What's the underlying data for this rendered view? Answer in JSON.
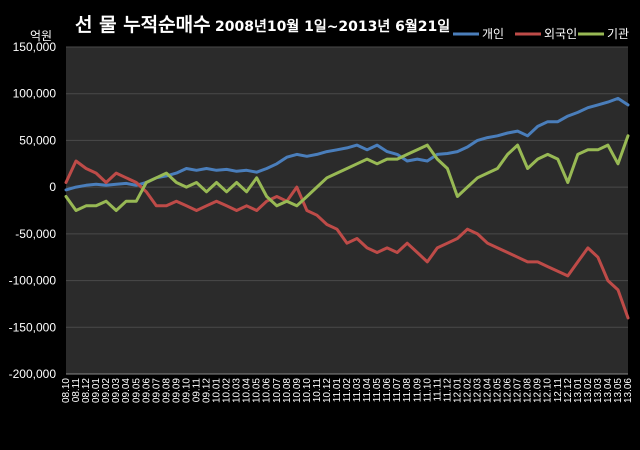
{
  "chart_data": {
    "type": "line",
    "title": "선 물 누적순매수",
    "subtitle": "2008년10월 1일~2013년 6월21일",
    "ylabel": "억원",
    "ylim": [
      -200000,
      150000
    ],
    "yticks": [
      150000,
      100000,
      50000,
      0,
      -50000,
      -100000,
      -150000,
      -200000
    ],
    "ytick_labels": [
      "150,000",
      "100,000",
      "50,000",
      "0",
      "-50,000",
      "-100,000",
      "-150,000",
      "-200,000"
    ],
    "grid": true,
    "legend_position": "top-right",
    "x": [
      "08.10",
      "08.11",
      "08.12",
      "09.01",
      "09.02",
      "09.03",
      "09.04",
      "09.05",
      "09.06",
      "09.07",
      "09.08",
      "09.09",
      "09.10",
      "09.11",
      "09.12",
      "10.01",
      "10.02",
      "10.03",
      "10.04",
      "10.05",
      "10.06",
      "10.07",
      "10.08",
      "10.09",
      "10.10",
      "10.11",
      "10.12",
      "11.01",
      "11.02",
      "11.03",
      "11.04",
      "11.05",
      "11.06",
      "11.07",
      "11.08",
      "11.09",
      "11.10",
      "11.11",
      "11.12",
      "12.01",
      "12.02",
      "12.03",
      "12.04",
      "12.05",
      "12.06",
      "12.07",
      "12.08",
      "12.09",
      "12.10",
      "12.11",
      "12.12",
      "13.01",
      "13.02",
      "13.03",
      "13.04",
      "13.05",
      "13.06"
    ],
    "series": [
      {
        "name": "개인",
        "color": "#4a7ebb",
        "values": [
          -3000,
          0,
          2000,
          3000,
          2000,
          3000,
          4000,
          2000,
          5000,
          10000,
          12000,
          15000,
          20000,
          18000,
          20000,
          18000,
          19000,
          17000,
          18000,
          16000,
          20000,
          25000,
          32000,
          35000,
          33000,
          35000,
          38000,
          40000,
          42000,
          45000,
          40000,
          45000,
          38000,
          35000,
          28000,
          30000,
          28000,
          35000,
          36000,
          38000,
          43000,
          50000,
          53000,
          55000,
          58000,
          60000,
          55000,
          65000,
          70000,
          70000,
          76000,
          80000,
          85000,
          88000,
          91000,
          95000,
          88000
        ]
      },
      {
        "name": "외국인",
        "color": "#be4b48",
        "values": [
          5000,
          28000,
          20000,
          15000,
          5000,
          15000,
          10000,
          5000,
          -5000,
          -20000,
          -20000,
          -15000,
          -20000,
          -25000,
          -20000,
          -15000,
          -20000,
          -25000,
          -20000,
          -25000,
          -15000,
          -10000,
          -15000,
          0,
          -25000,
          -30000,
          -40000,
          -45000,
          -60000,
          -55000,
          -65000,
          -70000,
          -65000,
          -70000,
          -60000,
          -70000,
          -80000,
          -65000,
          -60000,
          -55000,
          -45000,
          -50000,
          -60000,
          -65000,
          -70000,
          -75000,
          -80000,
          -80000,
          -85000,
          -90000,
          -95000,
          -80000,
          -65000,
          -75000,
          -100000,
          -110000,
          -140000
        ]
      },
      {
        "name": "기관",
        "color": "#98b954",
        "values": [
          -10000,
          -25000,
          -20000,
          -20000,
          -15000,
          -25000,
          -15000,
          -15000,
          5000,
          10000,
          15000,
          5000,
          0,
          5000,
          -5000,
          5000,
          -5000,
          5000,
          -5000,
          10000,
          -10000,
          -20000,
          -15000,
          -20000,
          -10000,
          0,
          10000,
          15000,
          20000,
          25000,
          30000,
          25000,
          30000,
          30000,
          35000,
          40000,
          45000,
          30000,
          20000,
          -10000,
          0,
          10000,
          15000,
          20000,
          35000,
          45000,
          20000,
          30000,
          35000,
          30000,
          5000,
          35000,
          40000,
          40000,
          45000,
          25000,
          55000
        ]
      }
    ]
  }
}
